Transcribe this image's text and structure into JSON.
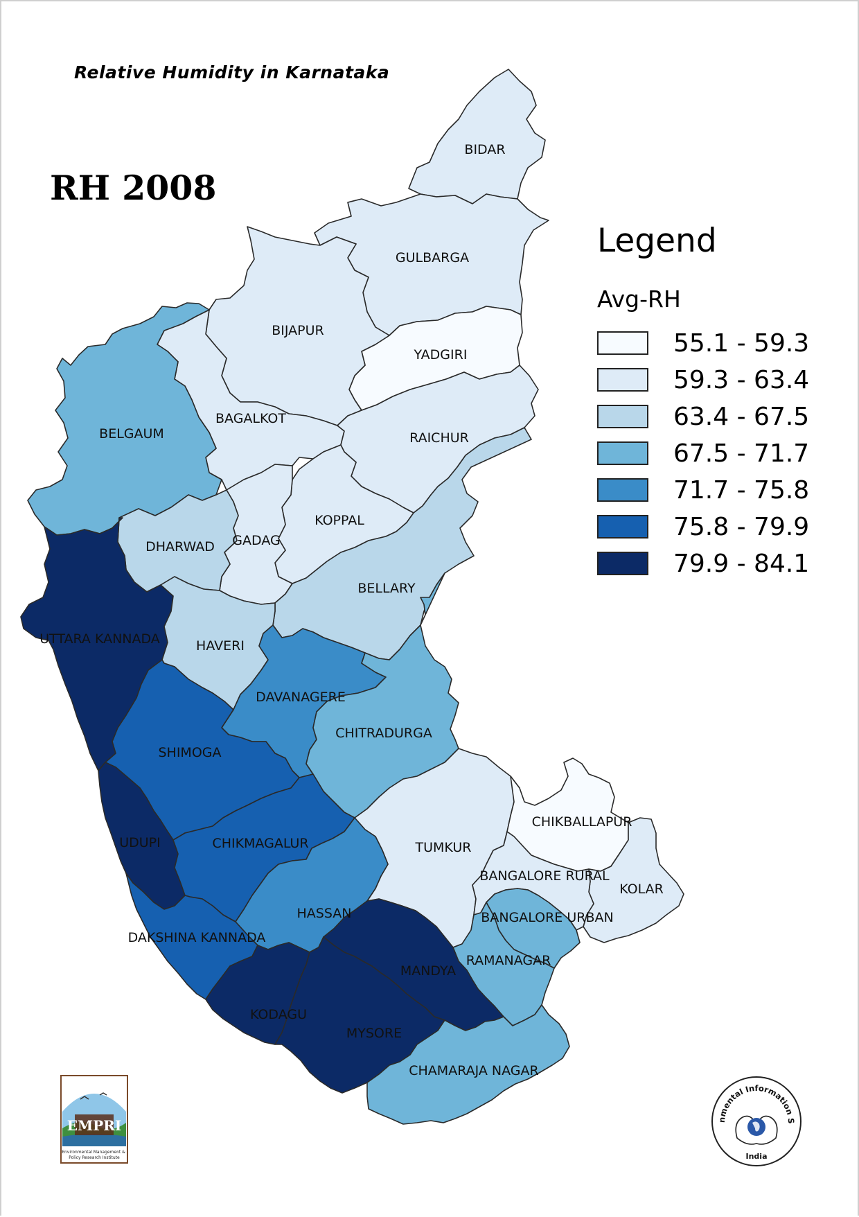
{
  "header": {
    "subtitle": "Relative Humidity in Karnataka",
    "map_title": "RH 2008"
  },
  "legend": {
    "title": "Legend",
    "field": "Avg-RH",
    "classes": [
      {
        "label": "55.1 - 59.3",
        "color": "#f7fbff"
      },
      {
        "label": "59.3 - 63.4",
        "color": "#deebf7"
      },
      {
        "label": "63.4 - 67.5",
        "color": "#b9d7ea"
      },
      {
        "label": "67.5 - 71.7",
        "color": "#6fb5d9"
      },
      {
        "label": "71.7 - 75.8",
        "color": "#3a8cc8"
      },
      {
        "label": "75.8 - 79.9",
        "color": "#1660b0"
      },
      {
        "label": "79.9 - 84.1",
        "color": "#0c2a66"
      }
    ]
  },
  "districts": [
    {
      "name": "BIDAR",
      "class": 1
    },
    {
      "name": "GULBARGA",
      "class": 1
    },
    {
      "name": "YADGIRI",
      "class": 0
    },
    {
      "name": "BIJAPUR",
      "class": 1
    },
    {
      "name": "BAGALKOT",
      "class": 1
    },
    {
      "name": "RAICHUR",
      "class": 1
    },
    {
      "name": "BELGAUM",
      "class": 3
    },
    {
      "name": "KOPPAL",
      "class": 1
    },
    {
      "name": "GADAG",
      "class": 1
    },
    {
      "name": "DHARWAD",
      "class": 2
    },
    {
      "name": "BELLARY",
      "class": 2
    },
    {
      "name": "UTTARA KANNADA",
      "class": 6
    },
    {
      "name": "HAVERI",
      "class": 2
    },
    {
      "name": "DAVANAGERE",
      "class": 4
    },
    {
      "name": "CHITRADURGA",
      "class": 3
    },
    {
      "name": "SHIMOGA",
      "class": 5
    },
    {
      "name": "UDUPI",
      "class": 6
    },
    {
      "name": "CHIKMAGALUR",
      "class": 5
    },
    {
      "name": "TUMKUR",
      "class": 1
    },
    {
      "name": "CHIKBALLAPUR",
      "class": 0
    },
    {
      "name": "KOLAR",
      "class": 1
    },
    {
      "name": "BANGALORE RURAL",
      "class": 1
    },
    {
      "name": "BANGALORE URBAN",
      "class": 3
    },
    {
      "name": "HASSAN",
      "class": 4
    },
    {
      "name": "DAKSHINA KANNADA",
      "class": 5
    },
    {
      "name": "RAMANAGAR",
      "class": 3
    },
    {
      "name": "MANDYA",
      "class": 6
    },
    {
      "name": "KODAGU",
      "class": 6
    },
    {
      "name": "MYSORE",
      "class": 6
    },
    {
      "name": "CHAMARAJA NAGAR",
      "class": 3
    }
  ],
  "logos": {
    "left": {
      "name": "EMPRI",
      "caption": "Environmental Management & Policy Research Institute"
    },
    "right": {
      "name": "Environmental Information System",
      "caption": "India"
    }
  }
}
